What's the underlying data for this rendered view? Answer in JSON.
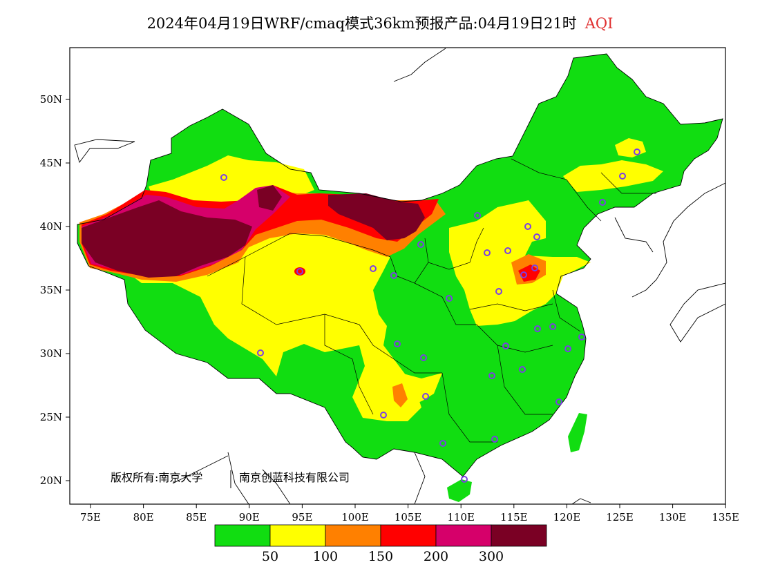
{
  "title": {
    "main": "2024年04月19日WRF/cmaq模式36km预报产品:04月19日21时",
    "product": "AQI"
  },
  "map": {
    "lon_ticks": [
      "75E",
      "80E",
      "85E",
      "90E",
      "95E",
      "100E",
      "105E",
      "110E",
      "115E",
      "120E",
      "125E",
      "130E",
      "135E"
    ],
    "lat_ticks": [
      "50N",
      "45N",
      "40N",
      "35N",
      "30N",
      "25N",
      "20N"
    ],
    "copyright": "版权所有:南京大学",
    "copyright_2": "南京创蓝科技有限公司"
  },
  "legend": {
    "colors": [
      "#11dd11",
      "#ffff00",
      "#ff8000",
      "#ff0000",
      "#d6006a",
      "#7a0024"
    ],
    "labels": [
      "50",
      "100",
      "150",
      "200",
      "300"
    ]
  },
  "colors": {
    "good": "#11dd11",
    "moderate": "#ffff00",
    "sensitive": "#ff8000",
    "unhealthy": "#ff0000",
    "very_unhealthy": "#d6006a",
    "hazardous": "#7a0024",
    "station_marker": "#7b3fe4"
  }
}
